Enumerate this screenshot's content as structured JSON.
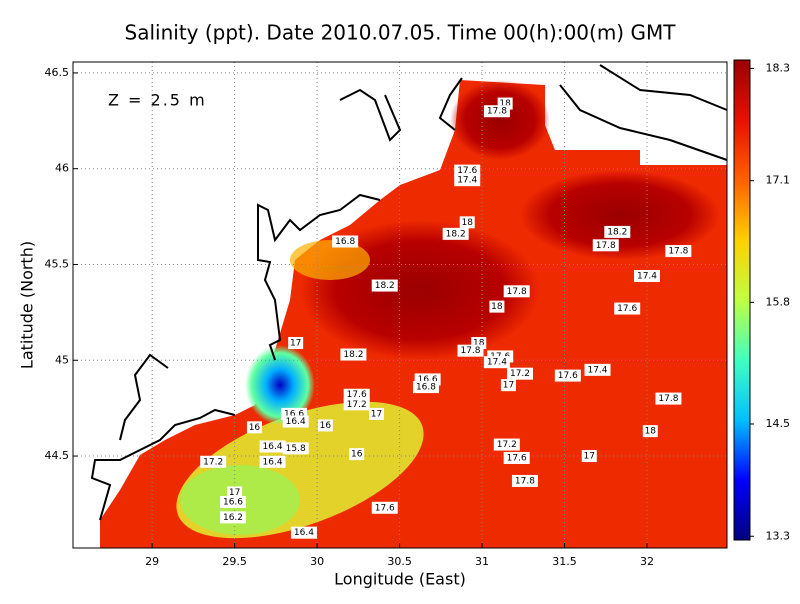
{
  "chart_data": {
    "type": "contour",
    "title": "Salinity (ppt). Date 2010.07.05. Time 00(h):00(m) GMT",
    "annotation": "Z = 2.5 m",
    "xlabel": "Longitude (East)",
    "ylabel": "Latitude (North)",
    "xlim": [
      28.52,
      32.485
    ],
    "ylim": [
      44.02,
      46.557
    ],
    "xticks": [
      29,
      29.5,
      30,
      30.5,
      31,
      31.5,
      32
    ],
    "yticks": [
      44.5,
      45,
      45.5,
      46,
      46.5
    ],
    "grid": true,
    "colorbar": {
      "lim": [
        13.26,
        18.39
      ],
      "ticks": [
        13.3,
        14.5,
        15.8,
        17.1,
        18.3
      ],
      "colors": [
        "#00007f",
        "#0000ff",
        "#00c0ff",
        "#40ffc0",
        "#c0ff40",
        "#ffd000",
        "#ff6000",
        "#e81000",
        "#9a0000"
      ]
    },
    "contour_labels": [
      {
        "label": "18",
        "lon": 31.14,
        "lat": 46.34
      },
      {
        "label": "17.8",
        "lon": 31.09,
        "lat": 46.3
      },
      {
        "label": "17.6",
        "lon": 30.91,
        "lat": 45.99
      },
      {
        "label": "17.4",
        "lon": 30.91,
        "lat": 45.94
      },
      {
        "label": "16.8",
        "lon": 30.17,
        "lat": 45.62
      },
      {
        "label": "18",
        "lon": 30.91,
        "lat": 45.72
      },
      {
        "label": "18.2",
        "lon": 30.84,
        "lat": 45.66
      },
      {
        "label": "18.2",
        "lon": 30.41,
        "lat": 45.39
      },
      {
        "label": "17.8",
        "lon": 31.21,
        "lat": 45.36
      },
      {
        "label": "18",
        "lon": 31.09,
        "lat": 45.28
      },
      {
        "label": "18.2",
        "lon": 31.82,
        "lat": 45.67
      },
      {
        "label": "17.8",
        "lon": 31.75,
        "lat": 45.6
      },
      {
        "label": "17.8",
        "lon": 32.19,
        "lat": 45.57
      },
      {
        "label": "17.4",
        "lon": 32.0,
        "lat": 45.44
      },
      {
        "label": "17.6",
        "lon": 31.88,
        "lat": 45.27
      },
      {
        "label": "17",
        "lon": 29.87,
        "lat": 45.09
      },
      {
        "label": "18.2",
        "lon": 30.22,
        "lat": 45.03
      },
      {
        "label": "18",
        "lon": 30.98,
        "lat": 45.09
      },
      {
        "label": "17.8",
        "lon": 30.93,
        "lat": 45.05
      },
      {
        "label": "17.6",
        "lon": 31.11,
        "lat": 45.02
      },
      {
        "label": "17.4",
        "lon": 31.09,
        "lat": 44.99
      },
      {
        "label": "17.2",
        "lon": 31.23,
        "lat": 44.93
      },
      {
        "label": "17",
        "lon": 31.16,
        "lat": 44.87
      },
      {
        "label": "17.6",
        "lon": 31.52,
        "lat": 44.92
      },
      {
        "label": "17.4",
        "lon": 31.7,
        "lat": 44.95
      },
      {
        "label": "16.6",
        "lon": 30.67,
        "lat": 44.9
      },
      {
        "label": "16.8",
        "lon": 30.66,
        "lat": 44.86
      },
      {
        "label": "17.6",
        "lon": 30.24,
        "lat": 44.82
      },
      {
        "label": "17.2",
        "lon": 30.24,
        "lat": 44.77
      },
      {
        "label": "17",
        "lon": 30.36,
        "lat": 44.72
      },
      {
        "label": "16.6",
        "lon": 29.86,
        "lat": 44.72
      },
      {
        "label": "16.4",
        "lon": 29.87,
        "lat": 44.68
      },
      {
        "label": "16",
        "lon": 30.05,
        "lat": 44.66
      },
      {
        "label": "16",
        "lon": 29.62,
        "lat": 44.65
      },
      {
        "label": "16.4",
        "lon": 29.73,
        "lat": 44.55
      },
      {
        "label": "15.8",
        "lon": 29.87,
        "lat": 44.54
      },
      {
        "label": "16",
        "lon": 30.24,
        "lat": 44.51
      },
      {
        "label": "16.4",
        "lon": 29.73,
        "lat": 44.47
      },
      {
        "label": "17.2",
        "lon": 29.37,
        "lat": 44.47
      },
      {
        "label": "17.2",
        "lon": 31.15,
        "lat": 44.56
      },
      {
        "label": "17.6",
        "lon": 31.21,
        "lat": 44.49
      },
      {
        "label": "17",
        "lon": 31.65,
        "lat": 44.5
      },
      {
        "label": "17.8",
        "lon": 31.26,
        "lat": 44.37
      },
      {
        "label": "17.8",
        "lon": 32.13,
        "lat": 44.8
      },
      {
        "label": "18",
        "lon": 32.02,
        "lat": 44.63
      },
      {
        "label": "17",
        "lon": 29.5,
        "lat": 44.31
      },
      {
        "label": "16.6",
        "lon": 29.49,
        "lat": 44.26
      },
      {
        "label": "16.2",
        "lon": 29.49,
        "lat": 44.18
      },
      {
        "label": "17.6",
        "lon": 30.41,
        "lat": 44.23
      },
      {
        "label": "16.4",
        "lon": 29.92,
        "lat": 44.1
      }
    ]
  }
}
